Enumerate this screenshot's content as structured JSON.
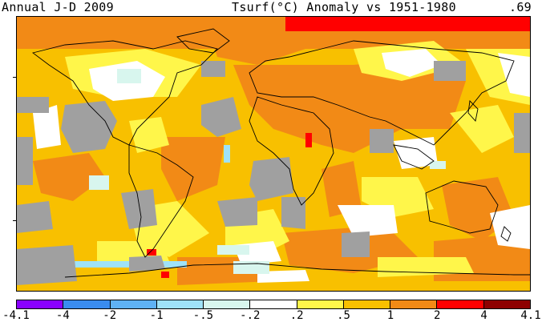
{
  "header": {
    "left": "Annual J-D 2009",
    "center": "Tsurf(°C) Anomaly vs 1951-1980",
    "right": ".69"
  },
  "legend": {
    "labels": [
      "-4.1",
      "-4",
      "-2",
      "-1",
      "-.5",
      "-.2",
      ".2",
      ".5",
      "1",
      "2",
      "4",
      "4.1"
    ],
    "colors": [
      "#8a00ff",
      "#3a8cf0",
      "#5fb2f5",
      "#9fe2f8",
      "#d8f6ee",
      "#ffffff",
      "#fff64a",
      "#f8c000",
      "#f28a16",
      "#ff0000",
      "#8e0000"
    ]
  },
  "map": {
    "colors": {
      "no_data": "#a0a0a0",
      "base": "#f8c000",
      "yellow": "#fff64a",
      "orange": "#f28a16",
      "red": "#ff0000",
      "white": "#ffffff",
      "light_cyan": "#d8f6ee",
      "cyan": "#9fe2f8",
      "coast": "#000000"
    }
  }
}
